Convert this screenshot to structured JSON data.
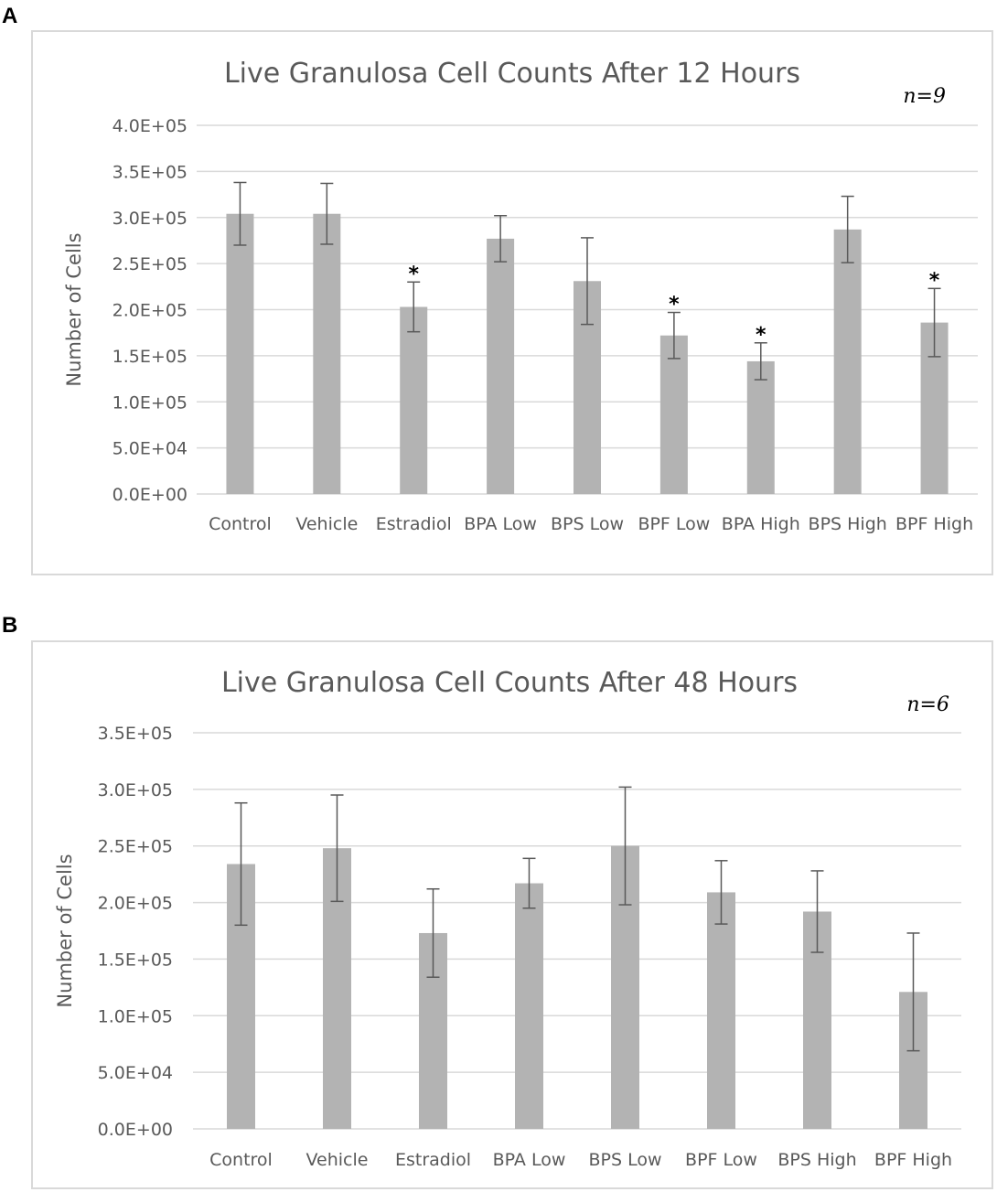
{
  "panels": [
    {
      "letter": "A",
      "n_label": "n=9",
      "chart_data": {
        "type": "bar",
        "title": "Live Granulosa Cell Counts After 12 Hours",
        "xlabel": "",
        "ylabel": "Number of Cells",
        "ylim": [
          0,
          400000
        ],
        "yticks": [
          0,
          50000,
          100000,
          150000,
          200000,
          250000,
          300000,
          350000,
          400000
        ],
        "ytick_labels": [
          "0.0E+00",
          "5.0E+04",
          "1.0E+05",
          "1.5E+05",
          "2.0E+05",
          "2.5E+05",
          "3.0E+05",
          "3.5E+05",
          "4.0E+05"
        ],
        "categories": [
          "Control",
          "Vehicle",
          "Estradiol",
          "BPA Low",
          "BPS Low",
          "BPF Low",
          "BPA High",
          "BPS High",
          "BPF High"
        ],
        "values": [
          304000,
          304000,
          203000,
          277000,
          231000,
          172000,
          144000,
          287000,
          186000
        ],
        "errors": [
          34000,
          33000,
          27000,
          25000,
          47000,
          25000,
          20000,
          36000,
          37000
        ],
        "significance": [
          "",
          "",
          "*",
          "",
          "",
          "*",
          "*",
          "",
          "*"
        ],
        "bar_color": "#b3b3b3",
        "grid": true
      }
    },
    {
      "letter": "B",
      "n_label": "n=6",
      "chart_data": {
        "type": "bar",
        "title": "Live Granulosa Cell Counts After 48 Hours",
        "xlabel": "",
        "ylabel": "Number of Cells",
        "ylim": [
          0,
          350000
        ],
        "yticks": [
          0,
          50000,
          100000,
          150000,
          200000,
          250000,
          300000,
          350000
        ],
        "ytick_labels": [
          "0.0E+00",
          "5.0E+04",
          "1.0E+05",
          "1.5E+05",
          "2.0E+05",
          "2.5E+05",
          "3.0E+05",
          "3.5E+05"
        ],
        "categories": [
          "Control",
          "Vehicle",
          "Estradiol",
          "BPA Low",
          "BPS Low",
          "BPF Low",
          "BPS High",
          "BPF High"
        ],
        "values": [
          234000,
          248000,
          173000,
          217000,
          250000,
          209000,
          192000,
          121000
        ],
        "errors": [
          54000,
          47000,
          39000,
          22000,
          52000,
          28000,
          36000,
          52000
        ],
        "significance": [
          "",
          "",
          "",
          "",
          "",
          "",
          "",
          ""
        ],
        "bar_color": "#b3b3b3",
        "grid": true
      }
    }
  ]
}
